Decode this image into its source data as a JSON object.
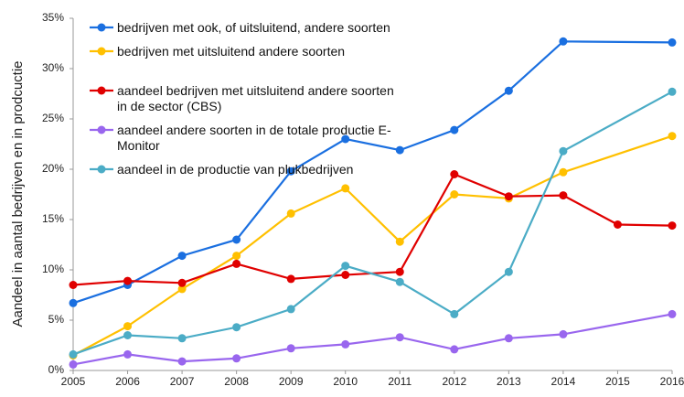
{
  "chart_data": {
    "type": "line",
    "y_label": "Aandeel in aantal bedrijven en in prodcuctie",
    "xlim": [
      2005,
      2016
    ],
    "xticks": [
      2005,
      2006,
      2007,
      2008,
      2009,
      2010,
      2011,
      2012,
      2013,
      2014,
      2015,
      2016
    ],
    "ylim": [
      0,
      35
    ],
    "yticks": [
      {
        "value": 0,
        "label": "0%"
      },
      {
        "value": 5,
        "label": "5%"
      },
      {
        "value": 10,
        "label": "10%"
      },
      {
        "value": 15,
        "label": "15%"
      },
      {
        "value": 20,
        "label": "20%"
      },
      {
        "value": 25,
        "label": "25%"
      },
      {
        "value": 30,
        "label": "30%"
      },
      {
        "value": 35,
        "label": "35%"
      }
    ],
    "series": [
      {
        "name": "bedrijven met ook, of uitsluitend, andere soorten",
        "color": "#1a6fe0",
        "x": [
          2005,
          2006,
          2007,
          2008,
          2009,
          2010,
          2011,
          2012,
          2013,
          2014,
          2016
        ],
        "values": [
          6.7,
          8.5,
          11.4,
          13.0,
          19.8,
          23.0,
          21.9,
          23.9,
          27.8,
          32.7,
          32.6
        ]
      },
      {
        "name": "bedrijven met uitsluitend andere soorten",
        "color": "#ffc000",
        "x": [
          2005,
          2006,
          2007,
          2008,
          2009,
          2010,
          2011,
          2012,
          2013,
          2014,
          2016
        ],
        "values": [
          1.5,
          4.4,
          8.1,
          11.4,
          15.6,
          18.1,
          12.8,
          17.5,
          17.1,
          19.7,
          23.3
        ]
      },
      {
        "name": "aandeel bedrijven met uitsluitend andere soorten in de sector (CBS)",
        "color": "#e00000",
        "x": [
          2005,
          2006,
          2007,
          2008,
          2009,
          2010,
          2011,
          2012,
          2013,
          2014,
          2015,
          2016
        ],
        "values": [
          8.5,
          8.9,
          8.7,
          10.6,
          9.1,
          9.5,
          9.8,
          19.5,
          17.3,
          17.4,
          14.5,
          14.4
        ]
      },
      {
        "name": "aandeel andere soorten in de totale productie E-Monitor",
        "color": "#9966ee",
        "x": [
          2005,
          2006,
          2007,
          2008,
          2009,
          2010,
          2011,
          2012,
          2013,
          2014,
          2016
        ],
        "values": [
          0.6,
          1.6,
          0.9,
          1.2,
          2.2,
          2.6,
          3.3,
          2.1,
          3.2,
          3.6,
          5.6
        ]
      },
      {
        "name": "aandeel in de productie van plukbedrijven",
        "color": "#4bacc6",
        "x": [
          2005,
          2006,
          2007,
          2008,
          2009,
          2010,
          2011,
          2012,
          2013,
          2014,
          2016
        ],
        "values": [
          1.6,
          3.5,
          3.2,
          4.3,
          6.1,
          10.4,
          8.8,
          5.6,
          9.8,
          21.8,
          27.7
        ]
      }
    ]
  }
}
